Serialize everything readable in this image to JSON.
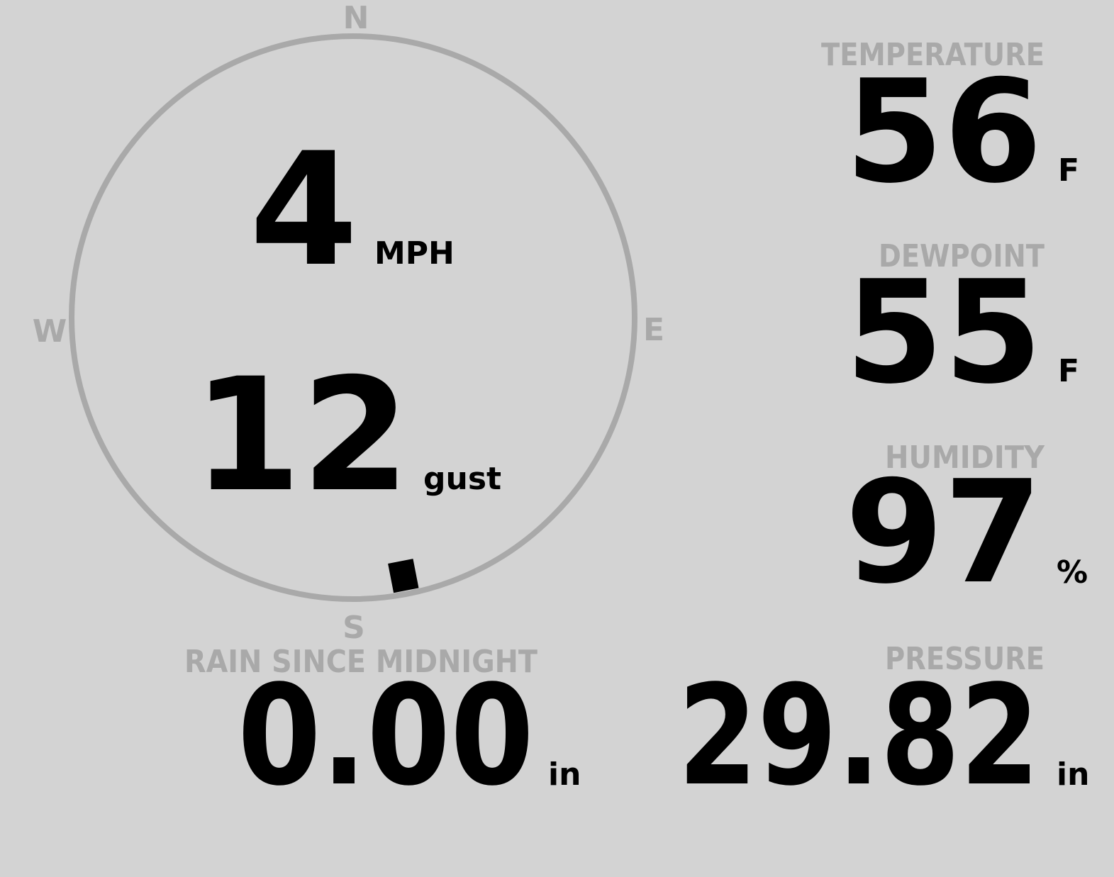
{
  "compass": {
    "north": "N",
    "east": "E",
    "south": "S",
    "west": "W",
    "wind_direction": 169
  },
  "wind": {
    "speed": "4",
    "speed_unit": "MPH",
    "gust": "12",
    "gust_label": "gust"
  },
  "temperature": {
    "label": "TEMPERATURE",
    "value": "56",
    "unit": "F"
  },
  "dewpoint": {
    "label": "DEWPOINT",
    "value": "55",
    "unit": "F"
  },
  "humidity": {
    "label": "HUMIDITY",
    "value": "97",
    "unit": "%"
  },
  "pressure": {
    "label": "PRESSURE",
    "value": "29.82",
    "unit": "in"
  },
  "rain": {
    "label": "RAIN SINCE MIDNIGHT",
    "value": "0.00",
    "unit": "in"
  }
}
